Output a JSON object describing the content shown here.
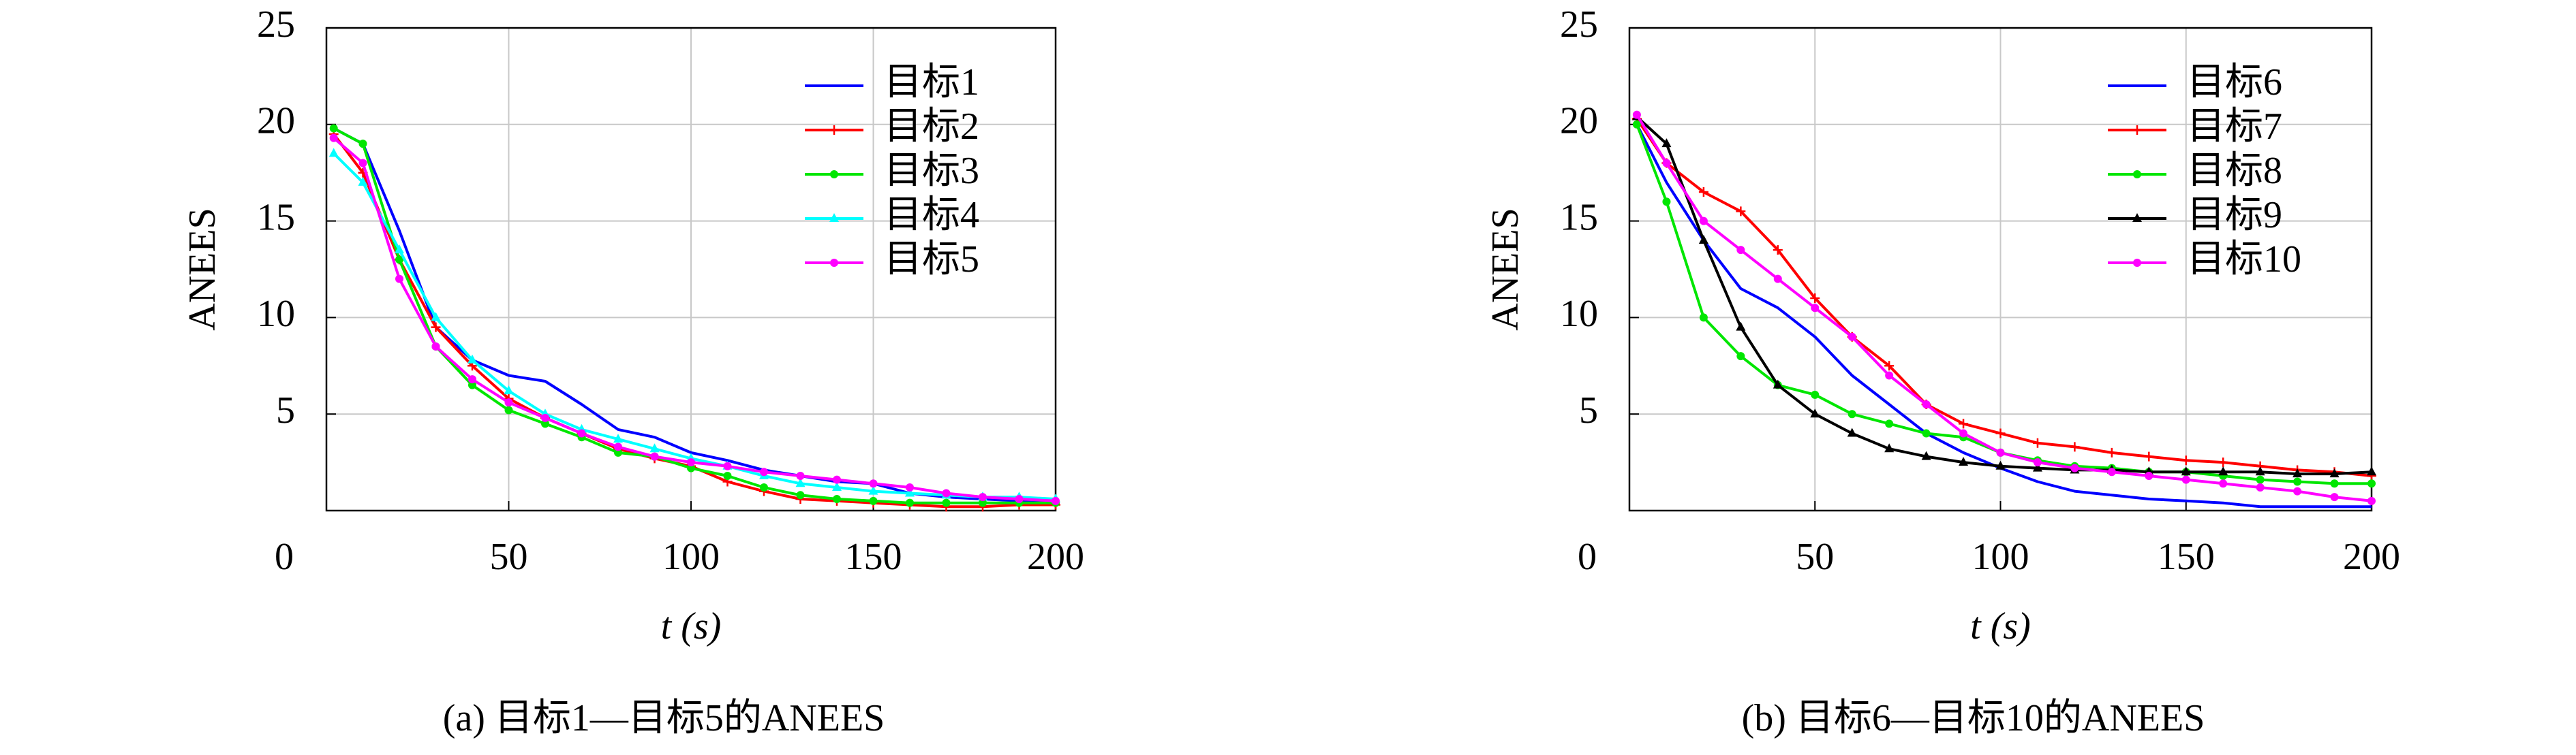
{
  "chart_data": [
    {
      "type": "line",
      "caption": "(a) 目标1—目标5的ANEES",
      "xlabel": "t (s)",
      "ylabel": "ANEES",
      "xlim": [
        0,
        200
      ],
      "ylim": [
        0,
        25
      ],
      "xticks": [
        0,
        50,
        100,
        150,
        200
      ],
      "yticks": [
        5,
        10,
        15,
        20,
        25
      ],
      "grid": true,
      "x": [
        2,
        10,
        20,
        30,
        40,
        50,
        60,
        70,
        80,
        90,
        100,
        110,
        120,
        130,
        140,
        150,
        160,
        170,
        180,
        190,
        200
      ],
      "series": [
        {
          "name": "目标1",
          "color": "#0000ff",
          "marker": "none",
          "values": [
            19.8,
            19,
            14.5,
            9.5,
            7.8,
            7,
            6.7,
            5.5,
            4.2,
            3.8,
            3,
            2.6,
            2.1,
            1.8,
            1.5,
            1.4,
            0.9,
            0.7,
            0.6,
            0.5,
            0.5
          ]
        },
        {
          "name": "目标2",
          "color": "#ff0000",
          "marker": "plus",
          "values": [
            19.5,
            17.5,
            13,
            9.5,
            7.5,
            5.8,
            4.8,
            4,
            3.2,
            2.7,
            2.3,
            1.5,
            1,
            0.6,
            0.5,
            0.4,
            0.3,
            0.2,
            0.2,
            0.3,
            0.3
          ]
        },
        {
          "name": "目标3",
          "color": "#00e600",
          "marker": "circle",
          "values": [
            19.8,
            19,
            13,
            8.5,
            6.5,
            5.2,
            4.5,
            3.8,
            3,
            2.8,
            2.2,
            1.8,
            1.2,
            0.8,
            0.6,
            0.5,
            0.4,
            0.4,
            0.4,
            0.4,
            0.4
          ]
        },
        {
          "name": "目标4",
          "color": "#00ffff",
          "marker": "triangle",
          "values": [
            18.5,
            17,
            13.5,
            10,
            7.8,
            6.2,
            5,
            4.2,
            3.7,
            3.2,
            2.7,
            2.3,
            1.8,
            1.4,
            1.2,
            1,
            0.9,
            0.8,
            0.7,
            0.7,
            0.6
          ]
        },
        {
          "name": "目标5",
          "color": "#ff00ff",
          "marker": "circle",
          "values": [
            19.3,
            18,
            12,
            8.5,
            6.8,
            5.6,
            4.8,
            4,
            3.3,
            2.8,
            2.5,
            2.3,
            2,
            1.8,
            1.6,
            1.4,
            1.2,
            0.9,
            0.7,
            0.6,
            0.5
          ]
        }
      ]
    },
    {
      "type": "line",
      "caption": "(b) 目标6—目标10的ANEES",
      "xlabel": "t (s)",
      "ylabel": "ANEES",
      "xlim": [
        0,
        200
      ],
      "ylim": [
        0,
        25
      ],
      "xticks": [
        0,
        50,
        100,
        150,
        200
      ],
      "yticks": [
        5,
        10,
        15,
        20,
        25
      ],
      "grid": true,
      "x": [
        2,
        10,
        20,
        30,
        40,
        50,
        60,
        70,
        80,
        90,
        100,
        110,
        120,
        130,
        140,
        150,
        160,
        170,
        180,
        190,
        200
      ],
      "series": [
        {
          "name": "目标6",
          "color": "#0000ff",
          "marker": "none",
          "values": [
            20,
            17,
            14,
            11.5,
            10.5,
            9,
            7,
            5.5,
            4,
            3,
            2.2,
            1.5,
            1,
            0.8,
            0.6,
            0.5,
            0.4,
            0.2,
            0.2,
            0.2,
            0.2
          ]
        },
        {
          "name": "目标7",
          "color": "#ff0000",
          "marker": "plus",
          "values": [
            20.3,
            18,
            16.5,
            15.5,
            13.5,
            11,
            9,
            7.5,
            5.5,
            4.5,
            4,
            3.5,
            3.3,
            3,
            2.8,
            2.6,
            2.5,
            2.3,
            2.1,
            2,
            1.8
          ]
        },
        {
          "name": "目标8",
          "color": "#00e600",
          "marker": "circle",
          "values": [
            20,
            16,
            10,
            8,
            6.5,
            6,
            5,
            4.5,
            4,
            3.8,
            3,
            2.6,
            2.3,
            2.2,
            2,
            2,
            1.8,
            1.6,
            1.5,
            1.4,
            1.4
          ]
        },
        {
          "name": "目标9",
          "color": "#000000",
          "marker": "triangle",
          "values": [
            20.4,
            19,
            14,
            9.5,
            6.5,
            5,
            4,
            3.2,
            2.8,
            2.5,
            2.3,
            2.2,
            2.1,
            2.1,
            2,
            2,
            2,
            2,
            1.9,
            1.9,
            2
          ]
        },
        {
          "name": "目标10",
          "color": "#ff00ff",
          "marker": "circle",
          "values": [
            20.5,
            18,
            15,
            13.5,
            12,
            10.5,
            9,
            7,
            5.5,
            4,
            3,
            2.5,
            2.2,
            2,
            1.8,
            1.6,
            1.4,
            1.2,
            1,
            0.7,
            0.5
          ]
        }
      ]
    }
  ]
}
